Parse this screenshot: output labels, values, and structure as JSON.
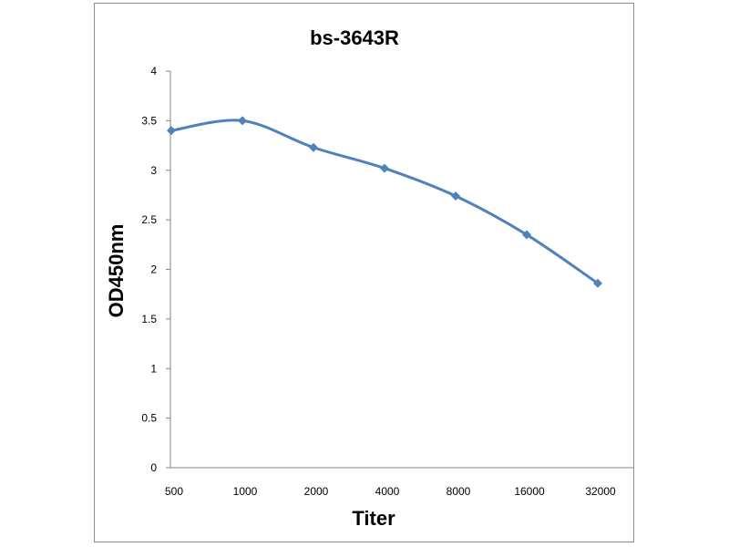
{
  "chart_data": {
    "type": "line",
    "title": "bs-3643R",
    "xlabel": "Titer",
    "ylabel": "OD450nm",
    "categories": [
      "500",
      "1000",
      "2000",
      "4000",
      "8000",
      "16000",
      "32000"
    ],
    "series": [
      {
        "values": [
          3.4,
          3.5,
          3.23,
          3.02,
          2.74,
          2.35,
          1.86
        ]
      }
    ],
    "ylim": [
      0,
      4
    ],
    "yticks": [
      "0",
      "0.5",
      "1",
      "1.5",
      "2",
      "2.5",
      "3",
      "3.5",
      "4"
    ],
    "grid": false,
    "legend": "none",
    "colors": {
      "line": "#4f81bd",
      "axis": "#868686",
      "frame": "#8c8c8c"
    }
  }
}
